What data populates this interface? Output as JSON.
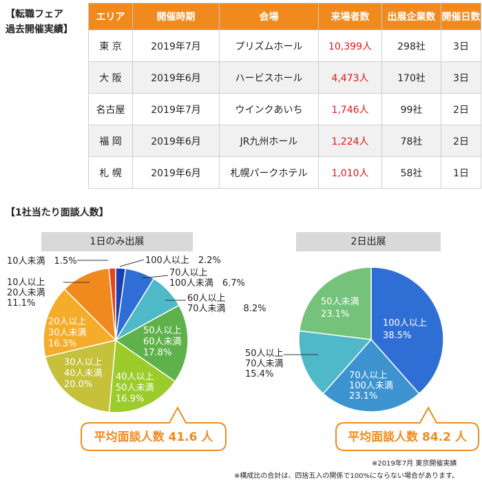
{
  "table_title": [
    "【転職フェア",
    "過去開催実績】"
  ],
  "table": {
    "headers": [
      "エリア",
      "開催時期",
      "会場",
      "来場者数",
      "出展企業数",
      "開催日数"
    ],
    "rows": [
      [
        "東 京",
        "2019年7月",
        "プリズムホール",
        "10,399人",
        "298社",
        "3日"
      ],
      [
        "大 阪",
        "2019年6月",
        "ハービスホール",
        "4,473人",
        "170社",
        "3日"
      ],
      [
        "名古屋",
        "2019年7月",
        "ウインクあいち",
        "1,746人",
        "99社",
        "2日"
      ],
      [
        "福 岡",
        "2019年6月",
        "JR九州ホール",
        "1,224人",
        "78社",
        "2日"
      ],
      [
        "札 幌",
        "2019年6月",
        "札幌パークホテル",
        "1,010人",
        "58社",
        "1日"
      ]
    ]
  },
  "section_title": "【1社当たり面談人数】",
  "chart_data": [
    {
      "type": "pie",
      "title": "1日のみ出展",
      "average_label": "平均面談人数 41.6 人",
      "slices": [
        {
          "label": "100人以上",
          "value": 2.2,
          "pct": "2.2%",
          "color": "#1a3fae"
        },
        {
          "label": "70人以上 100人未満",
          "value": 6.7,
          "pct": "6.7%",
          "color": "#2f6fd5"
        },
        {
          "label": "60人以上 70人未満",
          "value": 8.2,
          "pct": "8.2%",
          "color": "#4fb8c9"
        },
        {
          "label": "50人以上 60人未満",
          "value": 17.8,
          "pct": "17.8%",
          "color": "#5fb24b"
        },
        {
          "label": "40人以上 50人未満",
          "value": 16.9,
          "pct": "16.9%",
          "color": "#9ccb2c"
        },
        {
          "label": "30人以上 40人未満",
          "value": 20.0,
          "pct": "20.0%",
          "color": "#c5c13a"
        },
        {
          "label": "20人以上 30人未満",
          "value": 16.3,
          "pct": "16.3%",
          "color": "#f6ac2b"
        },
        {
          "label": "10人以上 20人未満",
          "value": 11.1,
          "pct": "11.1%",
          "color": "#f08a1e"
        },
        {
          "label": "10人未満",
          "value": 1.5,
          "pct": "1.5%",
          "color": "#e5421e"
        }
      ]
    },
    {
      "type": "pie",
      "title": "2日出展",
      "average_label": "平均面談人数 84.2 人",
      "slices": [
        {
          "label": "100人以上",
          "value": 38.5,
          "pct": "38.5%",
          "color": "#2f6fd5"
        },
        {
          "label": "70人以上 100人未満",
          "value": 23.1,
          "pct": "23.1%",
          "color": "#3c93cf"
        },
        {
          "label": "50人以上 70人未満",
          "value": 15.4,
          "pct": "15.4%",
          "color": "#4fb8c9"
        },
        {
          "label": "50人未満",
          "value": 23.1,
          "pct": "23.1%",
          "color": "#75c27b"
        }
      ]
    }
  ],
  "notes": [
    "※2019年7月 東京開催実績",
    "※構成比の合計は、四捨五入の関係で100%にならない場合があります。"
  ]
}
